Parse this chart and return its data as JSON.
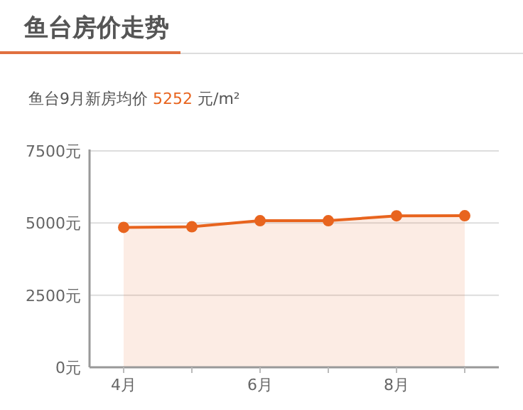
{
  "chart_data": {
    "type": "area",
    "title": "鱼台房价走势",
    "subtitle": "鱼台9月新房均价 5252 元/m²",
    "categories": [
      "4月",
      null,
      "6月",
      null,
      "8月",
      null
    ],
    "series": [
      {
        "color": "#e8641e",
        "values": [
          4850,
          4870,
          5080,
          5080,
          5250,
          5252
        ]
      }
    ],
    "ylim": [
      0,
      7500
    ],
    "yticks": [
      {
        "value": 0,
        "label": "0元"
      },
      {
        "value": 2500,
        "label": "2500元"
      },
      {
        "value": 5000,
        "label": "5000元"
      },
      {
        "value": 7500,
        "label": "7500元"
      }
    ],
    "grid": "y",
    "marker": "circle"
  }
}
